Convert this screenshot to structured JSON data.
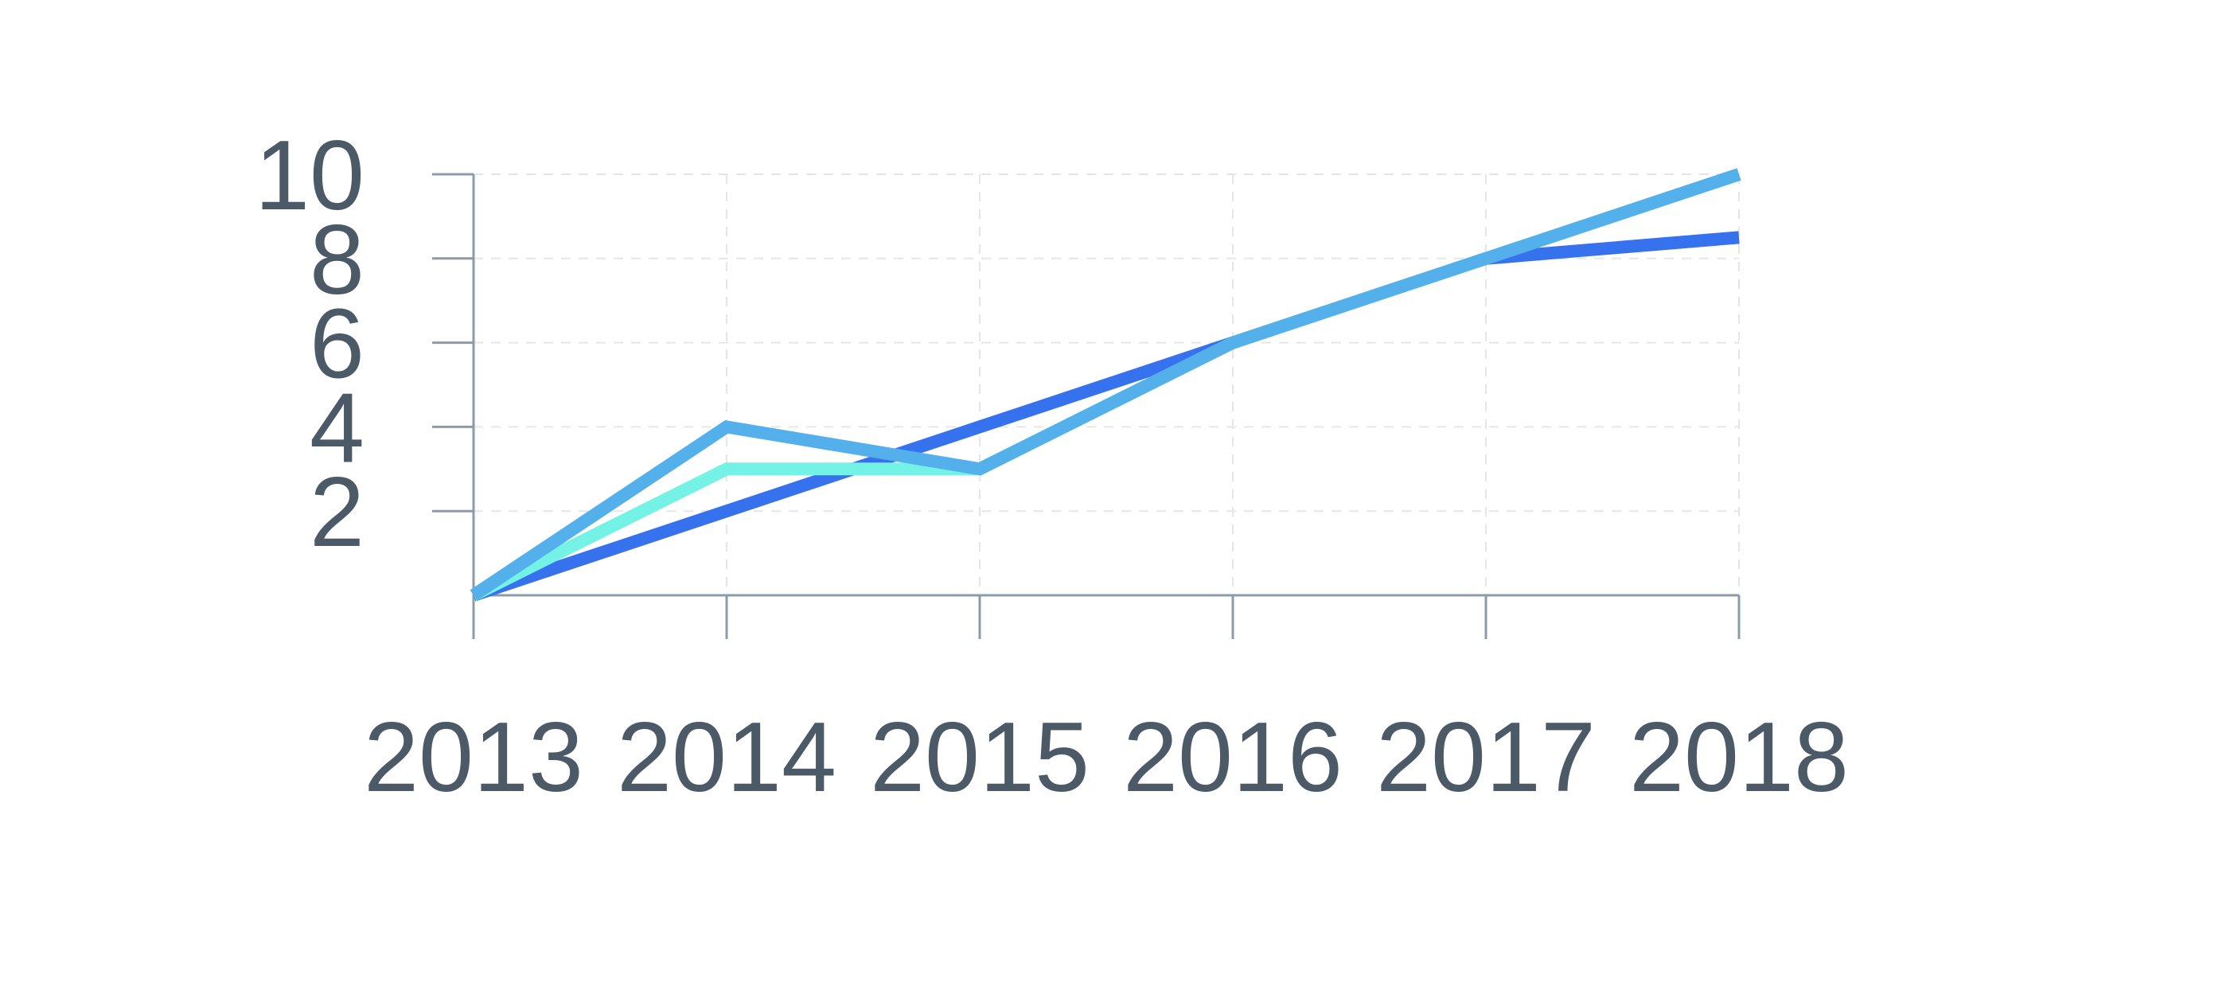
{
  "chart_data": {
    "type": "line",
    "x": [
      "2013",
      "2014",
      "2015",
      "2016",
      "2017",
      "2018"
    ],
    "ylim": [
      0,
      10
    ],
    "yticks": [
      "2",
      "4",
      "6",
      "8",
      "10"
    ],
    "grid": true,
    "series": [
      {
        "values": [
          0,
          2,
          4,
          6,
          8,
          8.5
        ],
        "color": "#3672ed"
      },
      {
        "values": [
          0,
          3,
          3,
          6,
          8,
          10
        ],
        "color": "#73f2e5"
      },
      {
        "values": [
          0,
          4,
          3,
          6,
          8,
          10
        ],
        "color": "#54b0ea"
      }
    ],
    "colors": {
      "axis": "#8a9cab",
      "grid": "#e6e6e6",
      "text": "#4b5a66"
    }
  }
}
